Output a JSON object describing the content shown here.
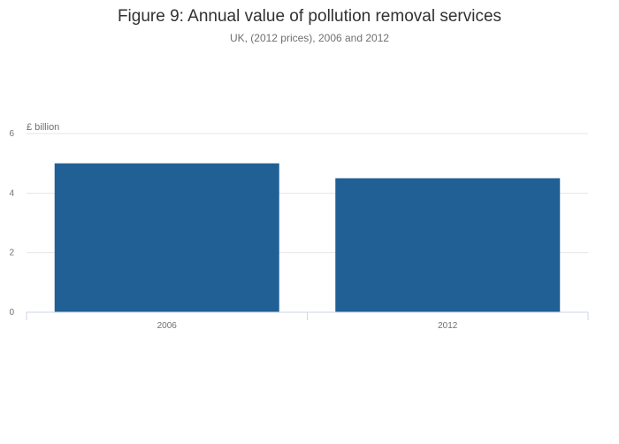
{
  "chart_data": {
    "type": "bar",
    "title": "Figure 9: Annual value of pollution removal services",
    "subtitle": "UK, (2012 prices), 2006 and 2012",
    "ylabel": "£ billion",
    "xlabel": "",
    "categories": [
      "2006",
      "2012"
    ],
    "series": [
      {
        "name": "Annual value of pollution removal services",
        "values": [
          5.0,
          4.5
        ]
      }
    ],
    "ylim": [
      0,
      6
    ],
    "yticks": [
      "0",
      "2",
      "4",
      "6"
    ],
    "grid": true,
    "legend": "none",
    "bar_color": "#206095"
  }
}
